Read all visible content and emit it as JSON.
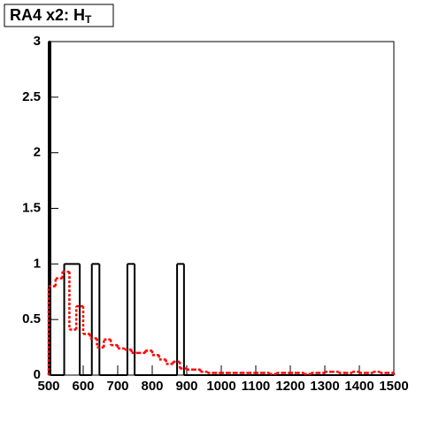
{
  "chart_data": {
    "type": "histogram",
    "title": "RA4 x2: H",
    "title_subscript": "T",
    "xlim": [
      500,
      1500
    ],
    "xticks": [
      500,
      600,
      700,
      800,
      900,
      1000,
      1100,
      1200,
      1300,
      1400,
      1500
    ],
    "ylim": [
      0,
      3
    ],
    "yticks": [
      0,
      0.5,
      1,
      1.5,
      2,
      2.5,
      3
    ],
    "series": [
      {
        "color": "#000000",
        "line_style": "solid",
        "bins": [
          500,
          505,
          545,
          590,
          625,
          647,
          728,
          749,
          872,
          892,
          1500
        ],
        "values": [
          3,
          0,
          1,
          0,
          1,
          0,
          1,
          0,
          1,
          0
        ]
      },
      {
        "color": "#ff0000",
        "line_style": "dashed",
        "bins": [
          500,
          520,
          540,
          560,
          580,
          600,
          620,
          640,
          660,
          680,
          700,
          720,
          740,
          760,
          780,
          800,
          820,
          840,
          860,
          880,
          900,
          920,
          940,
          960,
          980,
          1000,
          1020,
          1040,
          1060,
          1080,
          1100,
          1120,
          1140,
          1160,
          1180,
          1200,
          1220,
          1240,
          1260,
          1280,
          1300,
          1320,
          1340,
          1360,
          1380,
          1400,
          1420,
          1440,
          1460,
          1480,
          1500
        ],
        "values": [
          0.8,
          0.87,
          0.93,
          0.41,
          0.62,
          0.37,
          0.33,
          0.25,
          0.32,
          0.27,
          0.24,
          0.23,
          0.2,
          0.2,
          0.22,
          0.18,
          0.14,
          0.1,
          0.12,
          0.06,
          0.05,
          0.05,
          0.03,
          0.02,
          0.02,
          0.02,
          0.02,
          0.02,
          0.02,
          0.02,
          0.02,
          0.02,
          0.01,
          0.02,
          0.02,
          0.02,
          0.02,
          0.01,
          0.02,
          0.02,
          0.03,
          0.03,
          0.02,
          0.02,
          0.03,
          0.02,
          0.02,
          0.03,
          0.02,
          0.02
        ]
      }
    ]
  }
}
